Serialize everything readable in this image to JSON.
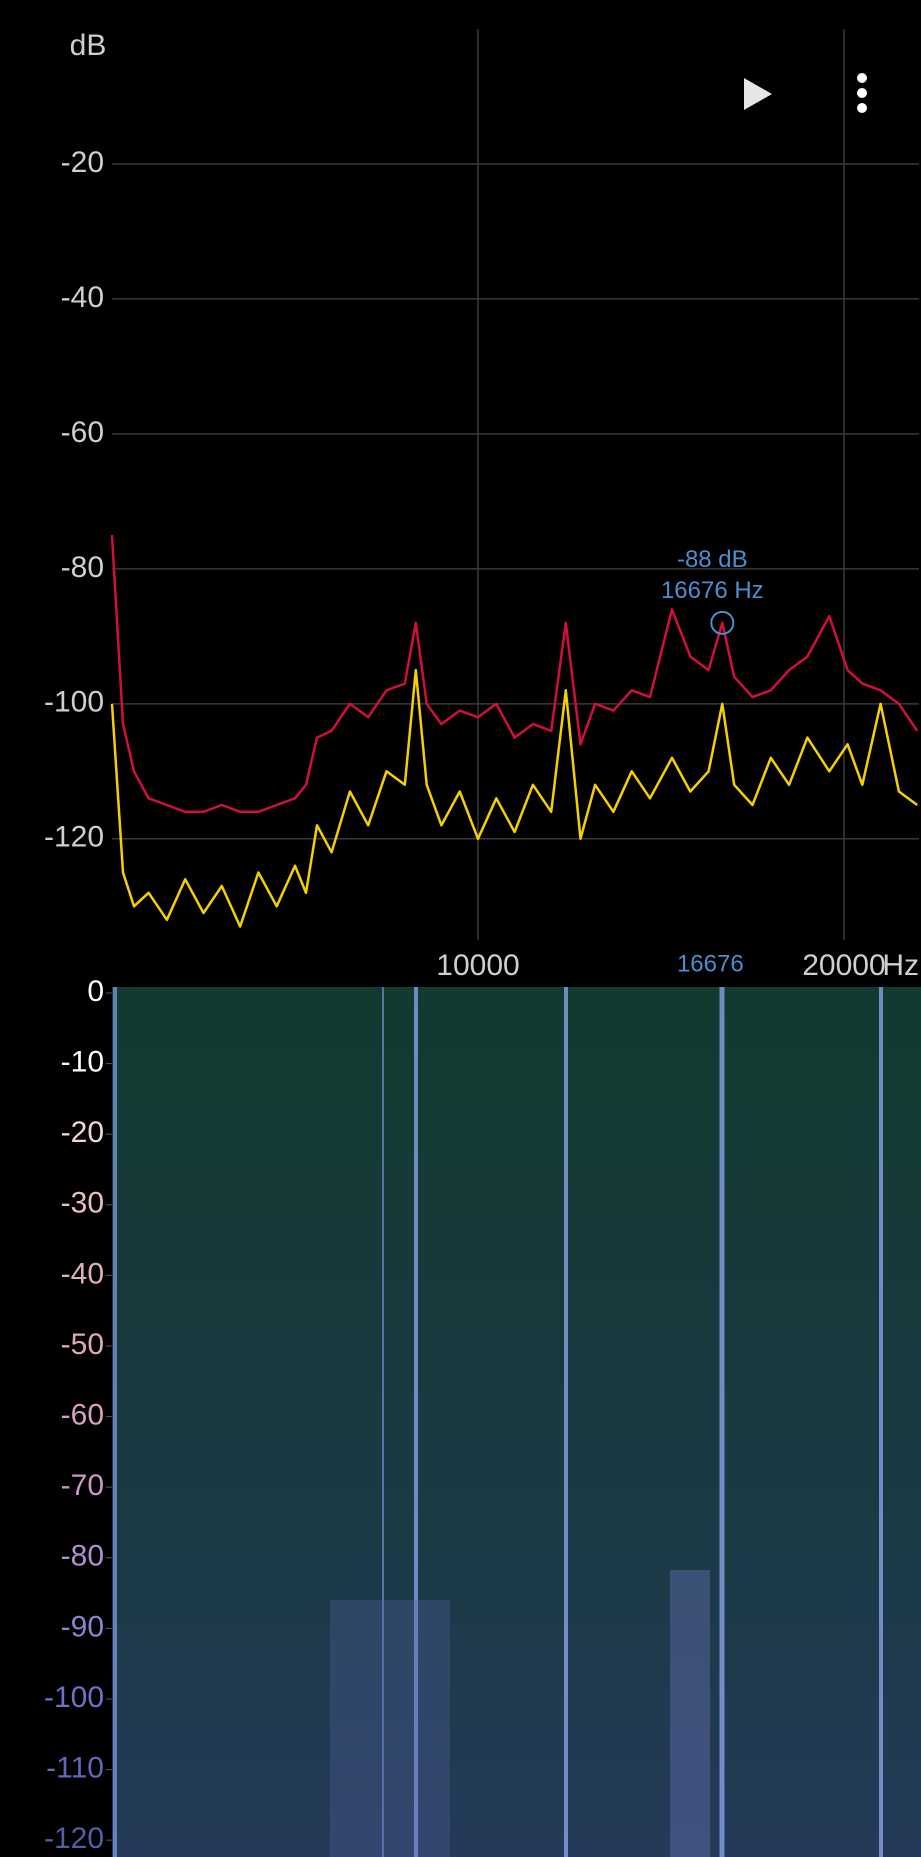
{
  "chart_data": [
    {
      "type": "line",
      "x_label": "Hz",
      "y_label": "dB",
      "x": [
        0,
        300,
        600,
        1000,
        1500,
        2000,
        2500,
        3000,
        3500,
        4000,
        4500,
        5000,
        5300,
        5600,
        6000,
        6500,
        7000,
        7500,
        8000,
        8300,
        8600,
        9000,
        9500,
        10000,
        10500,
        11000,
        11500,
        12000,
        12400,
        12800,
        13200,
        13700,
        14200,
        14700,
        15300,
        15800,
        16300,
        16676,
        17000,
        17500,
        18000,
        18500,
        19000,
        19600,
        20100,
        20500,
        21000,
        21500,
        22000
      ],
      "series": [
        {
          "color": "#d0103a",
          "values": [
            -75,
            -103,
            -110,
            -114,
            -115,
            -116,
            -116,
            -115,
            -116,
            -116,
            -115,
            -114,
            -112,
            -105,
            -104,
            -100,
            -102,
            -98,
            -97,
            -88,
            -100,
            -103,
            -101,
            -102,
            -100,
            -105,
            -103,
            -104,
            -88,
            -106,
            -100,
            -101,
            -98,
            -99,
            -86,
            -93,
            -95,
            -88,
            -96,
            -99,
            -98,
            -95,
            -93,
            -87,
            -95,
            -97,
            -98,
            -100,
            -104
          ]
        },
        {
          "color": "#f5d000",
          "values": [
            -100,
            -125,
            -130,
            -128,
            -132,
            -126,
            -131,
            -127,
            -133,
            -125,
            -130,
            -124,
            -128,
            -118,
            -122,
            -113,
            -118,
            -110,
            -112,
            -95,
            -112,
            -118,
            -113,
            -120,
            -114,
            -119,
            -112,
            -116,
            -98,
            -120,
            -112,
            -116,
            -110,
            -114,
            -108,
            -113,
            -110,
            -100,
            -112,
            -115,
            -108,
            -112,
            -105,
            -110,
            -106,
            -112,
            -100,
            -113,
            -115
          ]
        }
      ],
      "xlim": [
        0,
        22050
      ],
      "xticks": [
        10000,
        20000
      ],
      "ylim": [
        -135,
        0
      ],
      "yticks": [
        -20,
        -40,
        -60,
        -80,
        -100,
        -120
      ],
      "grid": true,
      "cursor": {
        "x": 16676,
        "y": -88,
        "color": "#4a8fd0",
        "texts": [
          "-88 dB",
          "16676 Hz"
        ]
      }
    },
    {
      "type": "spectrogram",
      "ylim": [
        -122.5,
        0
      ],
      "yticks": [
        0,
        -10,
        -20,
        -30,
        -40,
        -50,
        -60,
        -70,
        -80,
        -90,
        -100,
        -110,
        -120
      ]
    }
  ]
}
